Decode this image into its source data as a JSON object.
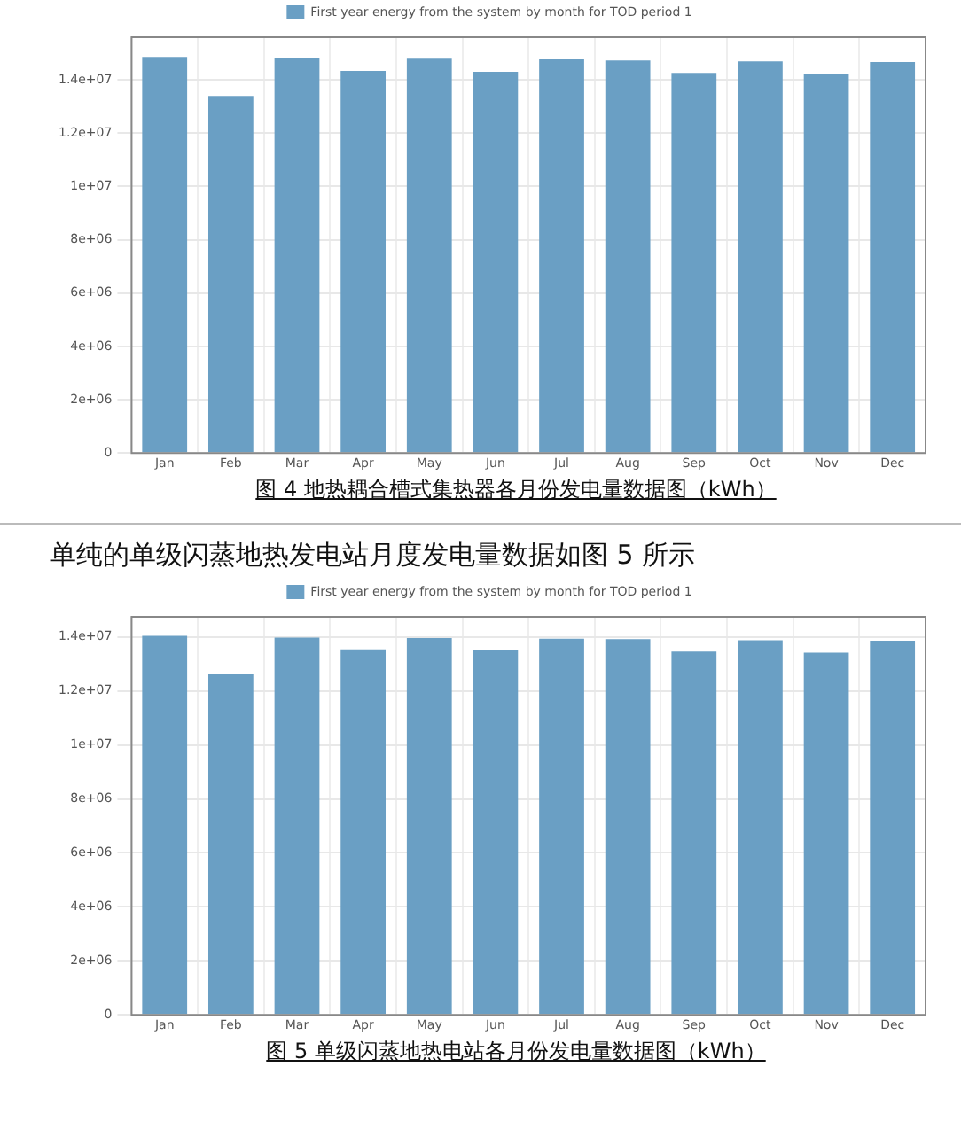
{
  "chart_data": [
    {
      "type": "bar",
      "categories": [
        "Jan",
        "Feb",
        "Mar",
        "Apr",
        "May",
        "Jun",
        "Jul",
        "Aug",
        "Sep",
        "Oct",
        "Nov",
        "Dec"
      ],
      "series": [
        {
          "name": "First year energy from the system by month for TOD period 1",
          "color": "#6a9fc4",
          "values": [
            14860000,
            13400000,
            14820000,
            14340000,
            14790000,
            14300000,
            14770000,
            14730000,
            14260000,
            14690000,
            14220000,
            14670000
          ]
        }
      ],
      "ylim": [
        0,
        15600000
      ],
      "yticks": [
        {
          "value": 0,
          "label": "0"
        },
        {
          "value": 2000000,
          "label": "2e+06"
        },
        {
          "value": 4000000,
          "label": "4e+06"
        },
        {
          "value": 6000000,
          "label": "6e+06"
        },
        {
          "value": 8000000,
          "label": "8e+06"
        },
        {
          "value": 10000000,
          "label": "1e+07"
        },
        {
          "value": 12000000,
          "label": "1.2e+07"
        },
        {
          "value": 14000000,
          "label": "1.4e+07"
        }
      ],
      "grid": true,
      "legend": "top",
      "annotations": [
        "图 4  地热耦合槽式集热器各月份发电量数据图（kWh）"
      ]
    },
    {
      "type": "bar",
      "categories": [
        "Jan",
        "Feb",
        "Mar",
        "Apr",
        "May",
        "Jun",
        "Jul",
        "Aug",
        "Sep",
        "Oct",
        "Nov",
        "Dec"
      ],
      "series": [
        {
          "name": "First year energy from the system by month for TOD period 1",
          "color": "#6a9fc4",
          "values": [
            14040000,
            12650000,
            13980000,
            13540000,
            13960000,
            13500000,
            13940000,
            13920000,
            13460000,
            13880000,
            13420000,
            13860000
          ]
        }
      ],
      "ylim": [
        0,
        14750000
      ],
      "yticks": [
        {
          "value": 0,
          "label": "0"
        },
        {
          "value": 2000000,
          "label": "2e+06"
        },
        {
          "value": 4000000,
          "label": "4e+06"
        },
        {
          "value": 6000000,
          "label": "6e+06"
        },
        {
          "value": 8000000,
          "label": "8e+06"
        },
        {
          "value": 10000000,
          "label": "1e+07"
        },
        {
          "value": 12000000,
          "label": "1.2e+07"
        },
        {
          "value": 14000000,
          "label": "1.4e+07"
        }
      ],
      "grid": true,
      "legend": "top",
      "subtitle": "单纯的单级闪蒸地热发电站月度发电量数据如图 5 所示",
      "annotations": [
        "图 5  单级闪蒸地热电站各月份发电量数据图（kWh）"
      ]
    }
  ]
}
